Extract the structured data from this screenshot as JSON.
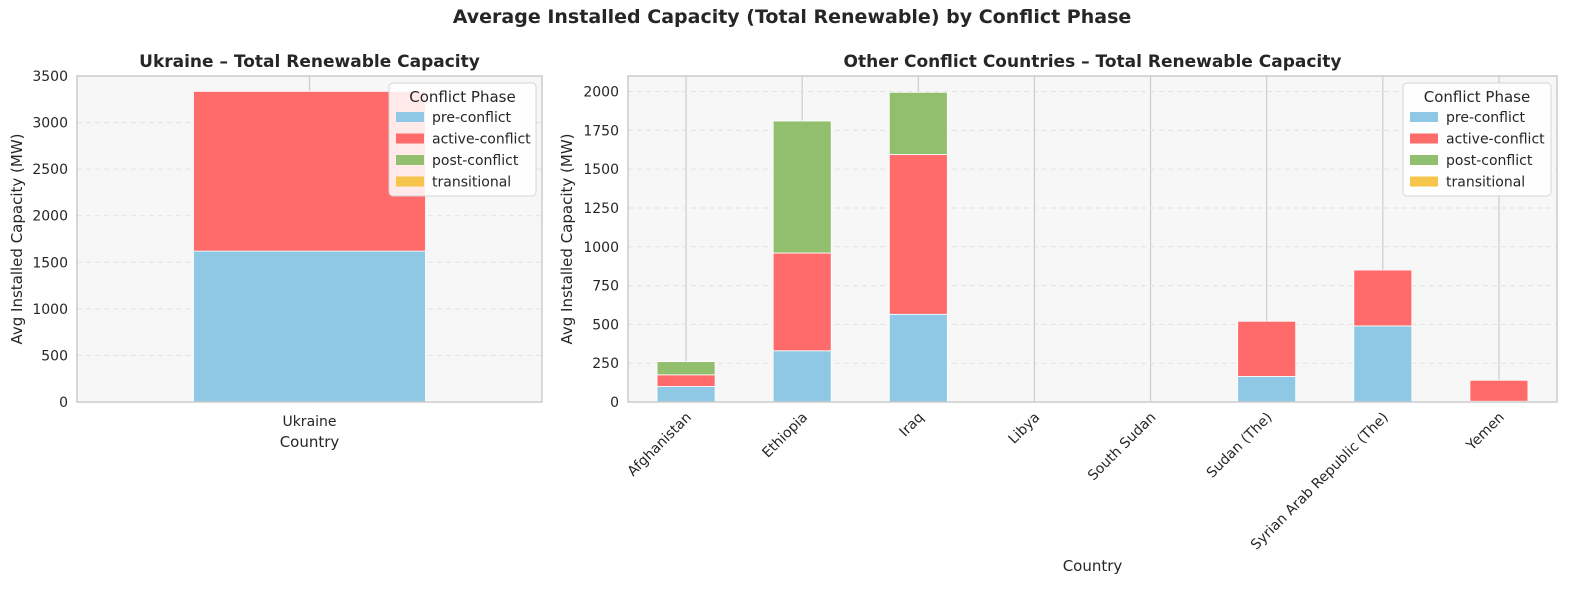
{
  "figure": {
    "title": "Average Installed Capacity (Total Renewable) by Conflict Phase"
  },
  "colors": {
    "pre-conflict": "#8fc8e5",
    "active-conflict": "#ff6b6b",
    "post-conflict": "#92bf6d",
    "transitional": "#f8c54c",
    "plot_bg": "#f7f7f7",
    "grid": "#e2e2e2",
    "spine": "#cccccc"
  },
  "chart_data": [
    {
      "type": "bar",
      "stacked": true,
      "title": "Ukraine – Total Renewable Capacity",
      "xlabel": "Country",
      "ylabel": "Avg Installed Capacity (MW)",
      "ylim": [
        0,
        3500
      ],
      "yticks": [
        0,
        500,
        1000,
        1500,
        2000,
        2500,
        3000,
        3500
      ],
      "grid": true,
      "legend": {
        "title": "Conflict Phase",
        "placement": "upper right"
      },
      "categories": [
        "Ukraine"
      ],
      "series": [
        {
          "name": "pre-conflict",
          "values": [
            1620
          ]
        },
        {
          "name": "active-conflict",
          "values": [
            1715
          ]
        },
        {
          "name": "post-conflict",
          "values": [
            0
          ]
        },
        {
          "name": "transitional",
          "values": [
            0
          ]
        }
      ]
    },
    {
      "type": "bar",
      "stacked": true,
      "title": "Other Conflict Countries – Total Renewable Capacity",
      "xlabel": "Country",
      "ylabel": "Avg Installed Capacity (MW)",
      "ylim": [
        0,
        2100
      ],
      "yticks": [
        0,
        250,
        500,
        750,
        1000,
        1250,
        1500,
        1750,
        2000
      ],
      "grid": true,
      "legend": {
        "title": "Conflict Phase",
        "placement": "upper right"
      },
      "categories": [
        "Afghanistan",
        "Ethiopia",
        "Iraq",
        "Libya",
        "South Sudan",
        "Sudan (The)",
        "Syrian Arab Republic (The)",
        "Yemen"
      ],
      "series": [
        {
          "name": "pre-conflict",
          "values": [
            100,
            330,
            565,
            0,
            0,
            165,
            490,
            5
          ]
        },
        {
          "name": "active-conflict",
          "values": [
            75,
            630,
            1030,
            0,
            0,
            355,
            360,
            135
          ]
        },
        {
          "name": "post-conflict",
          "values": [
            85,
            850,
            400,
            0,
            0,
            0,
            0,
            0
          ]
        },
        {
          "name": "transitional",
          "values": [
            0,
            0,
            0,
            0,
            0,
            0,
            0,
            0
          ]
        }
      ]
    }
  ]
}
